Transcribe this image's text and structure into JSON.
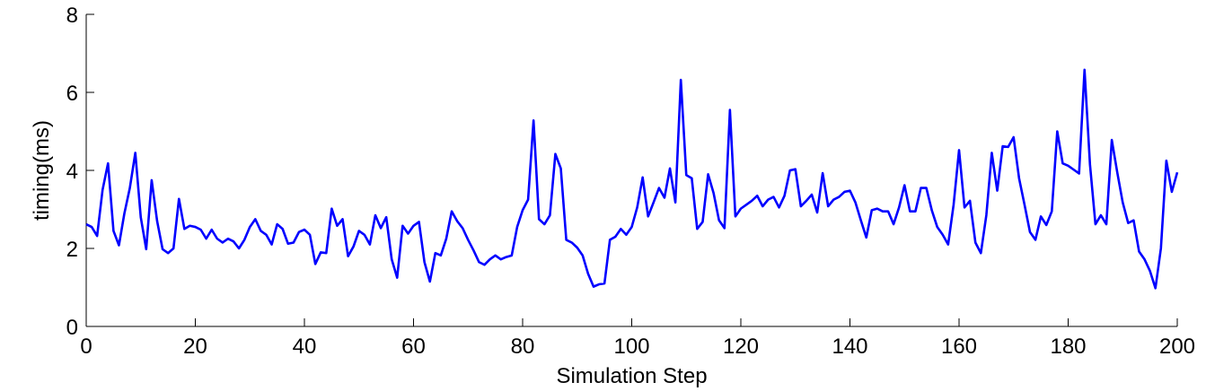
{
  "chart_data": {
    "type": "line",
    "title": "",
    "xlabel": "Simulation Step",
    "ylabel": "timing(ms)",
    "xlim": [
      0,
      200
    ],
    "ylim": [
      0,
      8
    ],
    "xticks": [
      0,
      20,
      40,
      60,
      80,
      100,
      120,
      140,
      160,
      180,
      200
    ],
    "yticks": [
      0,
      2,
      4,
      6,
      8
    ],
    "xtick_labels": [
      "0",
      "20",
      "40",
      "60",
      "80",
      "100",
      "120",
      "140",
      "160",
      "180",
      "200"
    ],
    "ytick_labels": [
      "0",
      "2",
      "4",
      "6",
      "8"
    ],
    "grid": false,
    "line_color": "#0000ff",
    "series": [
      {
        "x": [
          0,
          1,
          2,
          3,
          4,
          5,
          6,
          7,
          8,
          9,
          10,
          11,
          12,
          13,
          14,
          15,
          16,
          17,
          18,
          19,
          20,
          21,
          22,
          23,
          24,
          25,
          26,
          27,
          28,
          29,
          30,
          31,
          32,
          33,
          34,
          35,
          36,
          37,
          38,
          39,
          40,
          41,
          42,
          43,
          44,
          45,
          46,
          47,
          48,
          49,
          50,
          51,
          52,
          53,
          54,
          55,
          56,
          57,
          58,
          59,
          60,
          61,
          62,
          63,
          64,
          65,
          66,
          67,
          68,
          69,
          70,
          71,
          72,
          73,
          74,
          75,
          76,
          77,
          78,
          79,
          80,
          81,
          82,
          83,
          84,
          85,
          86,
          87,
          88,
          89,
          90,
          91,
          92,
          93,
          94,
          95,
          96,
          97,
          98,
          99,
          100,
          101,
          102,
          103,
          104,
          105,
          106,
          107,
          108,
          109,
          110,
          111,
          112,
          113,
          114,
          115,
          116,
          117,
          118,
          119,
          120,
          121,
          122,
          123,
          124,
          125,
          126,
          127,
          128,
          129,
          130,
          131,
          132,
          133,
          134,
          135,
          136,
          137,
          138,
          139,
          140,
          141,
          142,
          143,
          144,
          145,
          146,
          147,
          148,
          149,
          150,
          151,
          152,
          153,
          154,
          155,
          156,
          157,
          158,
          159,
          160,
          161,
          162,
          163,
          164,
          165,
          166,
          167,
          168,
          169,
          170,
          171,
          172,
          173,
          174,
          175,
          176,
          177,
          178,
          179,
          180,
          181,
          182,
          183,
          184,
          185,
          186,
          187,
          188,
          189,
          190,
          191,
          192,
          193,
          194,
          195,
          196,
          197,
          198,
          199,
          200
        ],
        "values": [
          2.62,
          2.55,
          2.32,
          3.5,
          4.18,
          2.45,
          2.08,
          2.9,
          3.55,
          4.45,
          2.8,
          1.98,
          3.75,
          2.7,
          1.98,
          1.88,
          2.0,
          3.27,
          2.5,
          2.58,
          2.55,
          2.48,
          2.25,
          2.48,
          2.25,
          2.15,
          2.25,
          2.18,
          2.0,
          2.22,
          2.55,
          2.75,
          2.45,
          2.35,
          2.1,
          2.62,
          2.5,
          2.12,
          2.15,
          2.42,
          2.48,
          2.35,
          1.6,
          1.9,
          1.88,
          3.02,
          2.58,
          2.75,
          1.8,
          2.05,
          2.45,
          2.35,
          2.1,
          2.85,
          2.52,
          2.8,
          1.72,
          1.25,
          2.58,
          2.38,
          2.58,
          2.68,
          1.65,
          1.15,
          1.88,
          1.82,
          2.25,
          2.95,
          2.7,
          2.52,
          2.22,
          1.95,
          1.65,
          1.58,
          1.72,
          1.82,
          1.72,
          1.78,
          1.82,
          2.55,
          2.98,
          3.25,
          5.28,
          2.75,
          2.62,
          2.85,
          4.42,
          4.05,
          2.22,
          2.15,
          2.02,
          1.82,
          1.35,
          1.02,
          1.08,
          1.1,
          2.22,
          2.3,
          2.5,
          2.35,
          2.55,
          3.05,
          3.82,
          2.82,
          3.18,
          3.55,
          3.3,
          4.05,
          3.18,
          6.32,
          3.88,
          3.8,
          2.5,
          2.68,
          3.9,
          3.42,
          2.72,
          2.52,
          5.55,
          2.82,
          3.02,
          3.12,
          3.22,
          3.35,
          3.08,
          3.25,
          3.32,
          3.05,
          3.35,
          4.0,
          4.03,
          3.08,
          3.22,
          3.38,
          2.92,
          3.93,
          3.08,
          3.25,
          3.32,
          3.45,
          3.48,
          3.18,
          2.72,
          2.28,
          2.98,
          3.02,
          2.95,
          2.95,
          2.62,
          3.05,
          3.62,
          2.95,
          2.95,
          3.55,
          3.55,
          2.98,
          2.55,
          2.35,
          2.1,
          3.12,
          4.52,
          3.05,
          3.22,
          2.15,
          1.88,
          2.85,
          4.45,
          3.48,
          4.62,
          4.6,
          4.85,
          3.8,
          3.12,
          2.42,
          2.22,
          2.82,
          2.6,
          2.95,
          5.0,
          4.18,
          4.12,
          4.02,
          3.92,
          6.58,
          4.15,
          2.62,
          2.85,
          2.62,
          4.78,
          3.95,
          3.18,
          2.65,
          2.72,
          1.92,
          1.72,
          1.42,
          0.98,
          2.0,
          4.25,
          3.45,
          3.95
        ]
      }
    ]
  }
}
